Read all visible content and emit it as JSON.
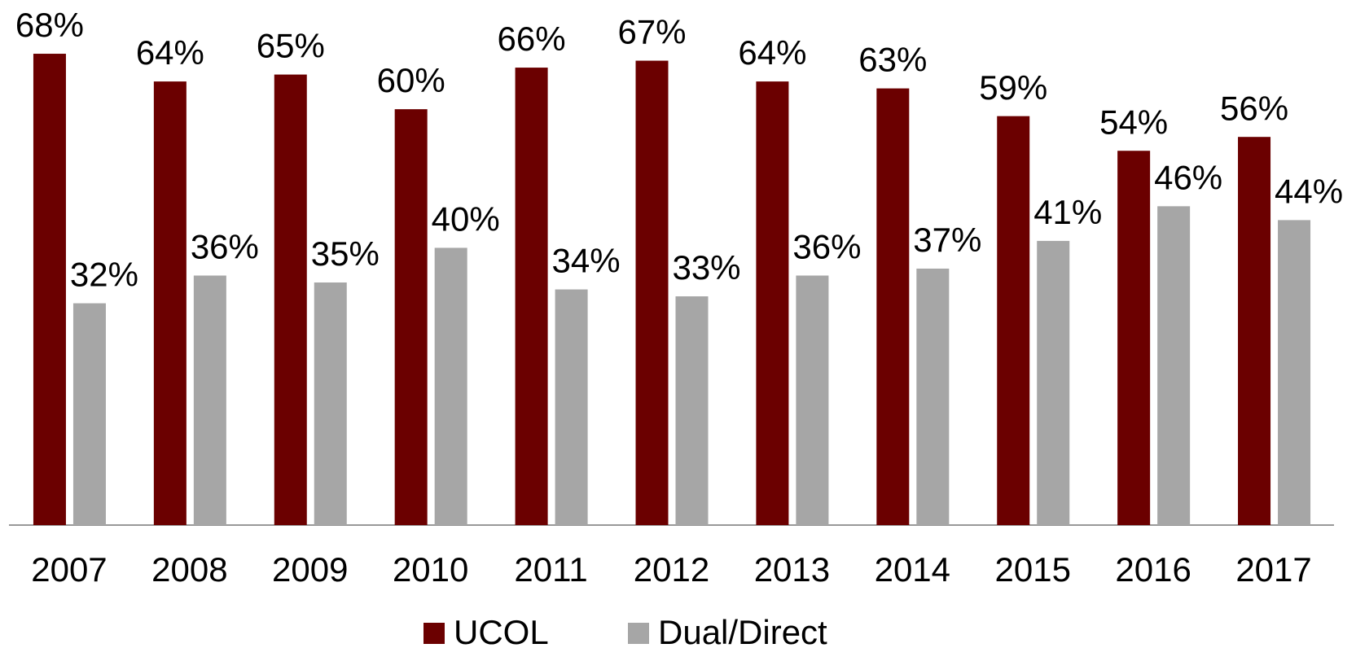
{
  "chart_data": {
    "type": "bar",
    "categories": [
      "2007",
      "2008",
      "2009",
      "2010",
      "2011",
      "2012",
      "2013",
      "2014",
      "2015",
      "2016",
      "2017"
    ],
    "series": [
      {
        "name": "UCOL",
        "color": "#6b0000",
        "values": [
          68,
          64,
          65,
          60,
          66,
          67,
          64,
          63,
          59,
          54,
          56
        ],
        "value_labels": [
          "68%",
          "64%",
          "65%",
          "60%",
          "66%",
          "67%",
          "64%",
          "63%",
          "59%",
          "54%",
          "56%"
        ]
      },
      {
        "name": "Dual/Direct",
        "color": "#a6a6a6",
        "values": [
          32,
          36,
          35,
          40,
          34,
          33,
          36,
          37,
          41,
          46,
          44
        ],
        "value_labels": [
          "32%",
          "36%",
          "35%",
          "40%",
          "34%",
          "33%",
          "36%",
          "37%",
          "41%",
          "46%",
          "44%"
        ]
      }
    ],
    "ylim": [
      0,
      70
    ],
    "legend": "bottom"
  }
}
